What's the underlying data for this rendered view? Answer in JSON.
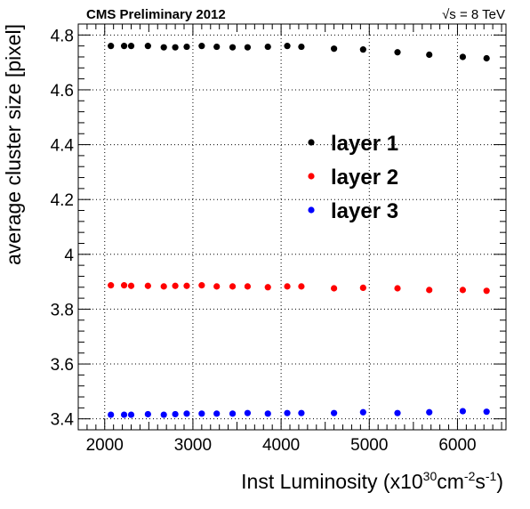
{
  "header": {
    "title": "CMS Preliminary 2012",
    "energy_label": "√s = 8 TeV"
  },
  "chart_data": {
    "type": "scatter",
    "xlabel": "Inst Luminosity (x10",
    "xlabel_exp1": "30",
    "xlabel_mid": "cm",
    "xlabel_exp2": "-2",
    "xlabel_s": "s",
    "xlabel_exp3": "-1",
    "xlabel_close": ")",
    "ylabel": "average cluster size [pixel]",
    "xlim": [
      1700,
      6550
    ],
    "ylim": [
      3.36,
      4.84
    ],
    "xticks": [
      2000,
      3000,
      4000,
      5000,
      6000
    ],
    "yticks": [
      3.4,
      3.6,
      3.8,
      4.0,
      4.2,
      4.4,
      4.6,
      4.8
    ],
    "ytick_labels": [
      "3.4",
      "3.6",
      "3.8",
      "4",
      "4.2",
      "4.4",
      "4.6",
      "4.8"
    ],
    "grid": true,
    "legend_position": "center-right",
    "x": [
      2070,
      2220,
      2300,
      2490,
      2670,
      2800,
      2930,
      3100,
      3270,
      3450,
      3620,
      3850,
      4070,
      4230,
      4600,
      4930,
      5320,
      5680,
      6060,
      6330
    ],
    "series": [
      {
        "name": "layer 1",
        "color": "#000000",
        "values": [
          4.76,
          4.76,
          4.76,
          4.76,
          4.755,
          4.755,
          4.757,
          4.76,
          4.757,
          4.755,
          4.755,
          4.757,
          4.76,
          4.757,
          4.75,
          4.747,
          4.737,
          4.728,
          4.72,
          4.715
        ]
      },
      {
        "name": "layer 2",
        "color": "#ff0000",
        "values": [
          3.887,
          3.887,
          3.885,
          3.885,
          3.883,
          3.885,
          3.885,
          3.887,
          3.883,
          3.883,
          3.883,
          3.88,
          3.883,
          3.883,
          3.876,
          3.878,
          3.876,
          3.87,
          3.87,
          3.867
        ]
      },
      {
        "name": "layer 3",
        "color": "#0000ff",
        "values": [
          3.415,
          3.415,
          3.415,
          3.417,
          3.415,
          3.417,
          3.419,
          3.419,
          3.419,
          3.419,
          3.421,
          3.419,
          3.421,
          3.421,
          3.421,
          3.424,
          3.421,
          3.424,
          3.428,
          3.426
        ]
      }
    ]
  }
}
